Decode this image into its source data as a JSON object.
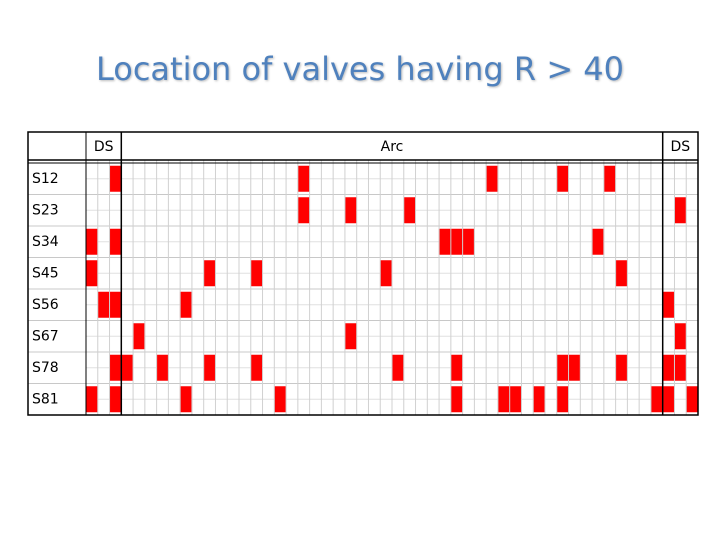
{
  "title": "Location of valves having R > 40",
  "table": {
    "sections": [
      {
        "label": "DS",
        "columns": 3
      },
      {
        "label": "Arc",
        "columns": 46
      },
      {
        "label": "DS",
        "columns": 3
      }
    ],
    "rows": [
      {
        "label": "S12",
        "cells": [
          0,
          0,
          1,
          0,
          0,
          0,
          0,
          0,
          0,
          0,
          0,
          0,
          0,
          0,
          0,
          0,
          0,
          0,
          1,
          0,
          0,
          0,
          0,
          0,
          0,
          0,
          0,
          0,
          0,
          0,
          0,
          0,
          0,
          0,
          1,
          0,
          0,
          0,
          0,
          0,
          1,
          0,
          0,
          0,
          1,
          0,
          0,
          0,
          0,
          0,
          0,
          0
        ]
      },
      {
        "label": "S23",
        "cells": [
          0,
          0,
          0,
          0,
          0,
          0,
          0,
          0,
          0,
          0,
          0,
          0,
          0,
          0,
          0,
          0,
          0,
          0,
          1,
          0,
          0,
          0,
          1,
          0,
          0,
          0,
          0,
          1,
          0,
          0,
          0,
          0,
          0,
          0,
          0,
          0,
          0,
          0,
          0,
          0,
          0,
          0,
          0,
          0,
          0,
          0,
          0,
          0,
          0,
          0,
          1,
          0
        ]
      },
      {
        "label": "S34",
        "cells": [
          1,
          0,
          1,
          0,
          0,
          0,
          0,
          0,
          0,
          0,
          0,
          0,
          0,
          0,
          0,
          0,
          0,
          0,
          0,
          0,
          0,
          0,
          0,
          0,
          0,
          0,
          0,
          0,
          0,
          0,
          1,
          1,
          1,
          0,
          0,
          0,
          0,
          0,
          0,
          0,
          0,
          0,
          0,
          1,
          0,
          0,
          0,
          0,
          0,
          0,
          0,
          0
        ]
      },
      {
        "label": "S45",
        "cells": [
          1,
          0,
          0,
          0,
          0,
          0,
          0,
          0,
          0,
          0,
          1,
          0,
          0,
          0,
          1,
          0,
          0,
          0,
          0,
          0,
          0,
          0,
          0,
          0,
          0,
          1,
          0,
          0,
          0,
          0,
          0,
          0,
          0,
          0,
          0,
          0,
          0,
          0,
          0,
          0,
          0,
          0,
          0,
          0,
          0,
          1,
          0,
          0,
          0,
          0,
          0,
          0
        ]
      },
      {
        "label": "S56",
        "cells": [
          0,
          1,
          1,
          0,
          0,
          0,
          0,
          0,
          1,
          0,
          0,
          0,
          0,
          0,
          0,
          0,
          0,
          0,
          0,
          0,
          0,
          0,
          0,
          0,
          0,
          0,
          0,
          0,
          0,
          0,
          0,
          0,
          0,
          0,
          0,
          0,
          0,
          0,
          0,
          0,
          0,
          0,
          0,
          0,
          0,
          0,
          0,
          0,
          0,
          1,
          0,
          0
        ]
      },
      {
        "label": "S67",
        "cells": [
          0,
          0,
          0,
          0,
          1,
          0,
          0,
          0,
          0,
          0,
          0,
          0,
          0,
          0,
          0,
          0,
          0,
          0,
          0,
          0,
          0,
          0,
          1,
          0,
          0,
          0,
          0,
          0,
          0,
          0,
          0,
          0,
          0,
          0,
          0,
          0,
          0,
          0,
          0,
          0,
          0,
          0,
          0,
          0,
          0,
          0,
          0,
          0,
          0,
          0,
          1,
          0
        ]
      },
      {
        "label": "S78",
        "cells": [
          0,
          0,
          1,
          1,
          0,
          0,
          1,
          0,
          0,
          0,
          1,
          0,
          0,
          0,
          1,
          0,
          0,
          0,
          0,
          0,
          0,
          0,
          0,
          0,
          0,
          0,
          1,
          0,
          0,
          0,
          0,
          1,
          0,
          0,
          0,
          0,
          0,
          0,
          0,
          0,
          1,
          1,
          0,
          0,
          0,
          1,
          0,
          0,
          0,
          1,
          1,
          0
        ]
      },
      {
        "label": "S81",
        "cells": [
          1,
          0,
          1,
          0,
          0,
          0,
          0,
          0,
          1,
          0,
          0,
          0,
          0,
          0,
          0,
          0,
          1,
          0,
          0,
          0,
          0,
          0,
          0,
          0,
          0,
          0,
          0,
          0,
          0,
          0,
          0,
          1,
          0,
          0,
          0,
          1,
          1,
          0,
          1,
          0,
          1,
          0,
          0,
          0,
          0,
          0,
          0,
          0,
          1,
          1,
          0,
          1
        ]
      }
    ]
  }
}
